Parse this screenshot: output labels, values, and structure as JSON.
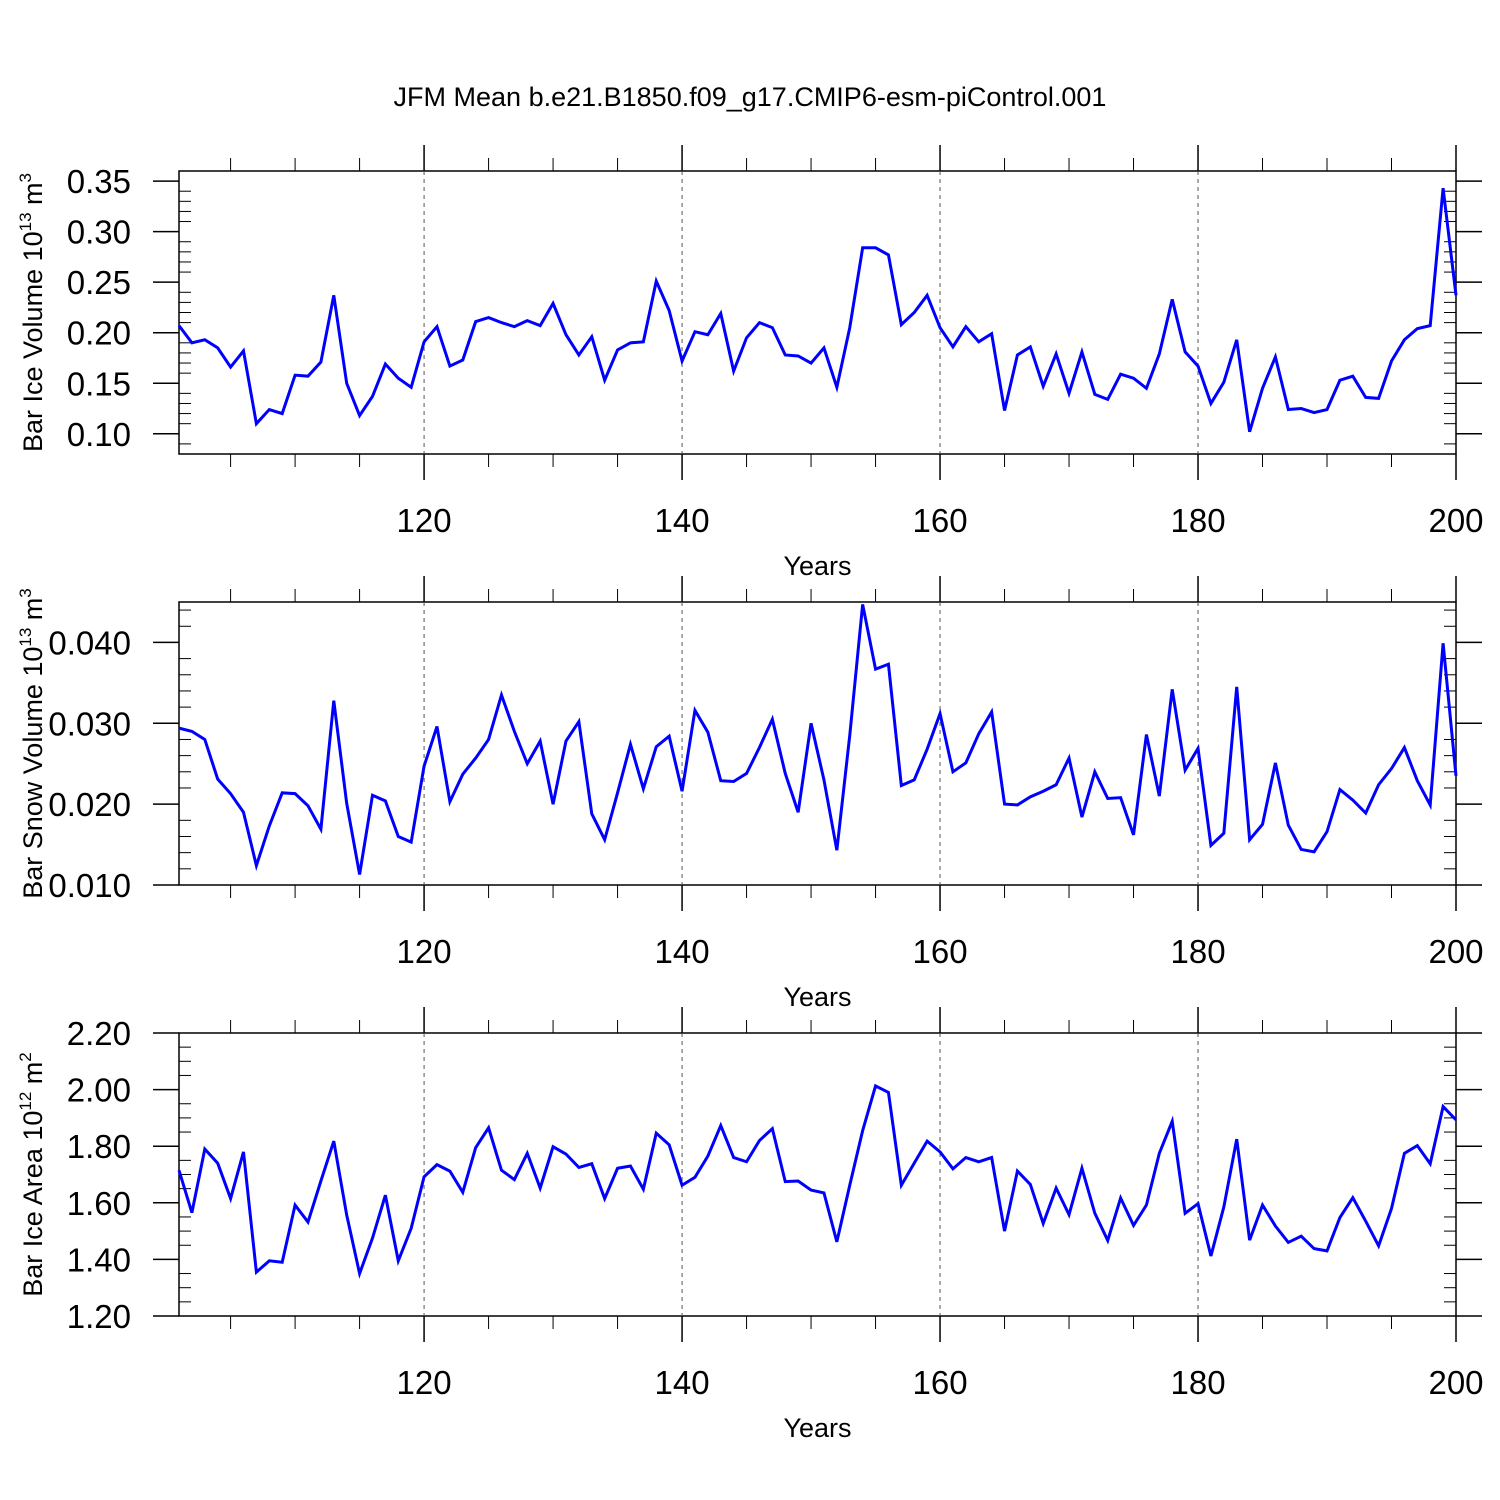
{
  "title": "JFM Mean b.e21.B1850.f09_g17.CMIP6-esm-piControl.001",
  "line_color": "#0000ff",
  "chart_data": [
    {
      "type": "line",
      "ylabel_prefix": "Bar Ice Volume 10",
      "ylabel_exp": "13",
      "ylabel_unit": " m",
      "ylabel_unit_exp": "3",
      "xlabel": "Years",
      "xlim": [
        101,
        200
      ],
      "ylim": [
        0.08,
        0.36
      ],
      "x_ticks": [
        120,
        140,
        160,
        180,
        200
      ],
      "x_tick_labels": [
        "120",
        "140",
        "160",
        "180",
        "200"
      ],
      "y_ticks": [
        0.1,
        0.15,
        0.2,
        0.25,
        0.3,
        0.35
      ],
      "y_tick_labels": [
        "0.10",
        "0.15",
        "0.20",
        "0.25",
        "0.30",
        "0.35"
      ],
      "y_minor_step": 0.01,
      "x_start": 101,
      "values": [
        0.207,
        0.19,
        0.193,
        0.185,
        0.166,
        0.182,
        0.11,
        0.124,
        0.12,
        0.158,
        0.157,
        0.171,
        0.237,
        0.15,
        0.118,
        0.137,
        0.169,
        0.155,
        0.146,
        0.191,
        0.206,
        0.167,
        0.173,
        0.211,
        0.215,
        0.21,
        0.206,
        0.212,
        0.207,
        0.229,
        0.198,
        0.178,
        0.196,
        0.153,
        0.183,
        0.19,
        0.191,
        0.251,
        0.222,
        0.172,
        0.201,
        0.198,
        0.219,
        0.162,
        0.195,
        0.21,
        0.205,
        0.178,
        0.177,
        0.17,
        0.185,
        0.146,
        0.205,
        0.284,
        0.284,
        0.277,
        0.208,
        0.22,
        0.237,
        0.205,
        0.186,
        0.206,
        0.191,
        0.199,
        0.123,
        0.178,
        0.186,
        0.147,
        0.179,
        0.14,
        0.181,
        0.139,
        0.134,
        0.159,
        0.155,
        0.145,
        0.179,
        0.233,
        0.181,
        0.167,
        0.13,
        0.151,
        0.193,
        0.102,
        0.145,
        0.176,
        0.124,
        0.125,
        0.121,
        0.124,
        0.153,
        0.157,
        0.136,
        0.135,
        0.172,
        0.193,
        0.204,
        0.207,
        0.343,
        0.237
      ]
    },
    {
      "type": "line",
      "ylabel_prefix": "Bar Snow Volume 10",
      "ylabel_exp": "13",
      "ylabel_unit": " m",
      "ylabel_unit_exp": "3",
      "xlabel": "Years",
      "xlim": [
        101,
        200
      ],
      "ylim": [
        0.01,
        0.045
      ],
      "x_ticks": [
        120,
        140,
        160,
        180,
        200
      ],
      "x_tick_labels": [
        "120",
        "140",
        "160",
        "180",
        "200"
      ],
      "y_ticks": [
        0.01,
        0.02,
        0.03,
        0.04
      ],
      "y_tick_labels": [
        "0.010",
        "0.020",
        "0.030",
        "0.040"
      ],
      "y_minor_step": 0.002,
      "x_start": 101,
      "values": [
        0.0294,
        0.029,
        0.028,
        0.0231,
        0.0213,
        0.019,
        0.0124,
        0.0173,
        0.0214,
        0.0213,
        0.0198,
        0.0169,
        0.0328,
        0.0201,
        0.0113,
        0.0211,
        0.0204,
        0.016,
        0.0153,
        0.0247,
        0.0296,
        0.0203,
        0.0237,
        0.0257,
        0.028,
        0.0335,
        0.029,
        0.025,
        0.0278,
        0.02,
        0.0278,
        0.0302,
        0.0188,
        0.0156,
        0.0214,
        0.0274,
        0.0219,
        0.0271,
        0.0284,
        0.0216,
        0.0316,
        0.0289,
        0.0229,
        0.0228,
        0.0238,
        0.027,
        0.0305,
        0.0238,
        0.019,
        0.03,
        0.023,
        0.0143,
        0.0285,
        0.0447,
        0.0367,
        0.0373,
        0.0223,
        0.023,
        0.0268,
        0.0312,
        0.024,
        0.0251,
        0.0287,
        0.0314,
        0.02,
        0.0199,
        0.0209,
        0.0216,
        0.0224,
        0.0257,
        0.0184,
        0.024,
        0.0207,
        0.0208,
        0.0162,
        0.0286,
        0.021,
        0.0342,
        0.0242,
        0.0269,
        0.0149,
        0.0164,
        0.0345,
        0.0156,
        0.0175,
        0.0251,
        0.0174,
        0.0144,
        0.0141,
        0.0166,
        0.0218,
        0.0205,
        0.0189,
        0.0224,
        0.0244,
        0.027,
        0.0229,
        0.0199,
        0.0399,
        0.0235
      ]
    },
    {
      "type": "line",
      "ylabel_prefix": "Bar Ice Area 10",
      "ylabel_exp": "12",
      "ylabel_unit": " m",
      "ylabel_unit_exp": "2",
      "xlabel": "Years",
      "xlim": [
        101,
        200
      ],
      "ylim": [
        1.2,
        2.2
      ],
      "x_ticks": [
        120,
        140,
        160,
        180,
        200
      ],
      "x_tick_labels": [
        "120",
        "140",
        "160",
        "180",
        "200"
      ],
      "y_ticks": [
        1.2,
        1.4,
        1.6,
        1.8,
        2.0,
        2.2
      ],
      "y_tick_labels": [
        "1.20",
        "1.40",
        "1.60",
        "1.80",
        "2.00",
        "2.20"
      ],
      "y_minor_step": 0.05,
      "x_start": 101,
      "values": [
        1.715,
        1.565,
        1.79,
        1.74,
        1.615,
        1.78,
        1.355,
        1.395,
        1.39,
        1.592,
        1.532,
        1.677,
        1.818,
        1.557,
        1.35,
        1.475,
        1.627,
        1.395,
        1.51,
        1.692,
        1.735,
        1.712,
        1.637,
        1.795,
        1.865,
        1.715,
        1.682,
        1.775,
        1.652,
        1.798,
        1.772,
        1.725,
        1.738,
        1.615,
        1.722,
        1.73,
        1.648,
        1.846,
        1.805,
        1.662,
        1.69,
        1.765,
        1.873,
        1.76,
        1.745,
        1.82,
        1.862,
        1.675,
        1.677,
        1.645,
        1.635,
        1.462,
        1.662,
        1.855,
        2.013,
        1.99,
        1.662,
        1.74,
        1.818,
        1.78,
        1.72,
        1.76,
        1.745,
        1.76,
        1.5,
        1.712,
        1.665,
        1.527,
        1.652,
        1.558,
        1.722,
        1.563,
        1.467,
        1.617,
        1.52,
        1.592,
        1.775,
        1.888,
        1.563,
        1.597,
        1.412,
        1.585,
        1.825,
        1.468,
        1.592,
        1.518,
        1.46,
        1.482,
        1.438,
        1.43,
        1.548,
        1.618,
        1.535,
        1.448,
        1.58,
        1.775,
        1.802,
        1.738,
        1.94,
        1.893
      ]
    }
  ]
}
